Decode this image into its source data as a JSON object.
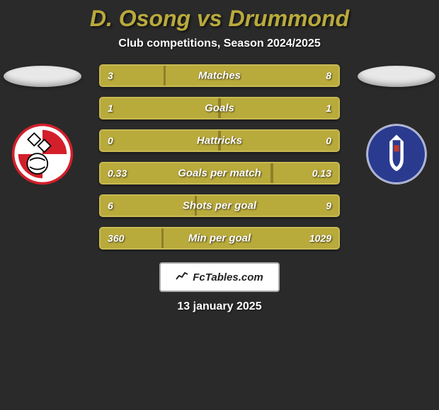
{
  "background_color": "#2a2a2a",
  "title": {
    "text": "D. Osong vs Drummond",
    "color": "#b9aa3c",
    "fontsize": 32
  },
  "subtitle": {
    "text": "Club competitions, Season 2024/2025",
    "color": "#ffffff",
    "fontsize": 16
  },
  "left_team": {
    "ellipse_color": "#e8e8e8",
    "badge": {
      "shape": "shield-rounded",
      "bg": "#ffffff",
      "accent": "#d31f2a",
      "detail": "#000000"
    }
  },
  "right_team": {
    "ellipse_color": "#e8e8e8",
    "badge": {
      "shape": "circle",
      "bg": "#ffffff",
      "accent": "#2a3b8f",
      "detail": "#c0392b"
    }
  },
  "bars": {
    "track_color": "#8e7f28",
    "fill_color": "#b9aa3c",
    "border_color": "#c9bb52",
    "label_fontsize": 15,
    "value_fontsize": 14,
    "height": 32,
    "gap": 14,
    "rows": [
      {
        "label": "Matches",
        "left": "3",
        "right": "8",
        "left_pct": 27,
        "right_pct": 73
      },
      {
        "label": "Goals",
        "left": "1",
        "right": "1",
        "left_pct": 50,
        "right_pct": 50
      },
      {
        "label": "Hattricks",
        "left": "0",
        "right": "0",
        "left_pct": 50,
        "right_pct": 50
      },
      {
        "label": "Goals per match",
        "left": "0.33",
        "right": "0.13",
        "left_pct": 72,
        "right_pct": 28
      },
      {
        "label": "Shots per goal",
        "left": "6",
        "right": "9",
        "left_pct": 40,
        "right_pct": 60
      },
      {
        "label": "Min per goal",
        "left": "360",
        "right": "1029",
        "left_pct": 26,
        "right_pct": 74
      }
    ]
  },
  "footer": {
    "site": "FcTables.com",
    "date": "13 january 2025",
    "date_fontsize": 16
  }
}
